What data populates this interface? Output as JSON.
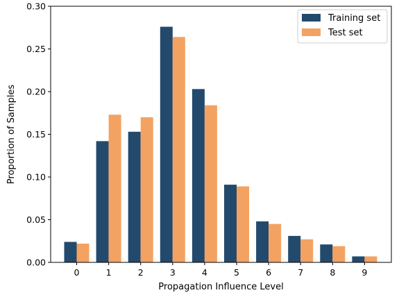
{
  "chart_data": {
    "type": "bar",
    "categories": [
      "0",
      "1",
      "2",
      "3",
      "4",
      "5",
      "6",
      "7",
      "8",
      "9"
    ],
    "series": [
      {
        "name": "Training set",
        "color": "#234a6d",
        "values": [
          0.024,
          0.142,
          0.153,
          0.276,
          0.203,
          0.091,
          0.048,
          0.031,
          0.021,
          0.007
        ]
      },
      {
        "name": "Test set",
        "color": "#f4a261",
        "values": [
          0.022,
          0.173,
          0.17,
          0.264,
          0.184,
          0.089,
          0.045,
          0.027,
          0.019,
          0.007
        ]
      }
    ],
    "title": "",
    "xlabel": "Propagation Influence Level",
    "ylabel": "Proportion of Samples",
    "ylim": [
      0,
      0.3
    ],
    "yticks": [
      "0.00",
      "0.05",
      "0.10",
      "0.15",
      "0.20",
      "0.25",
      "0.30"
    ],
    "grid": false,
    "legend_position": "top-right"
  }
}
